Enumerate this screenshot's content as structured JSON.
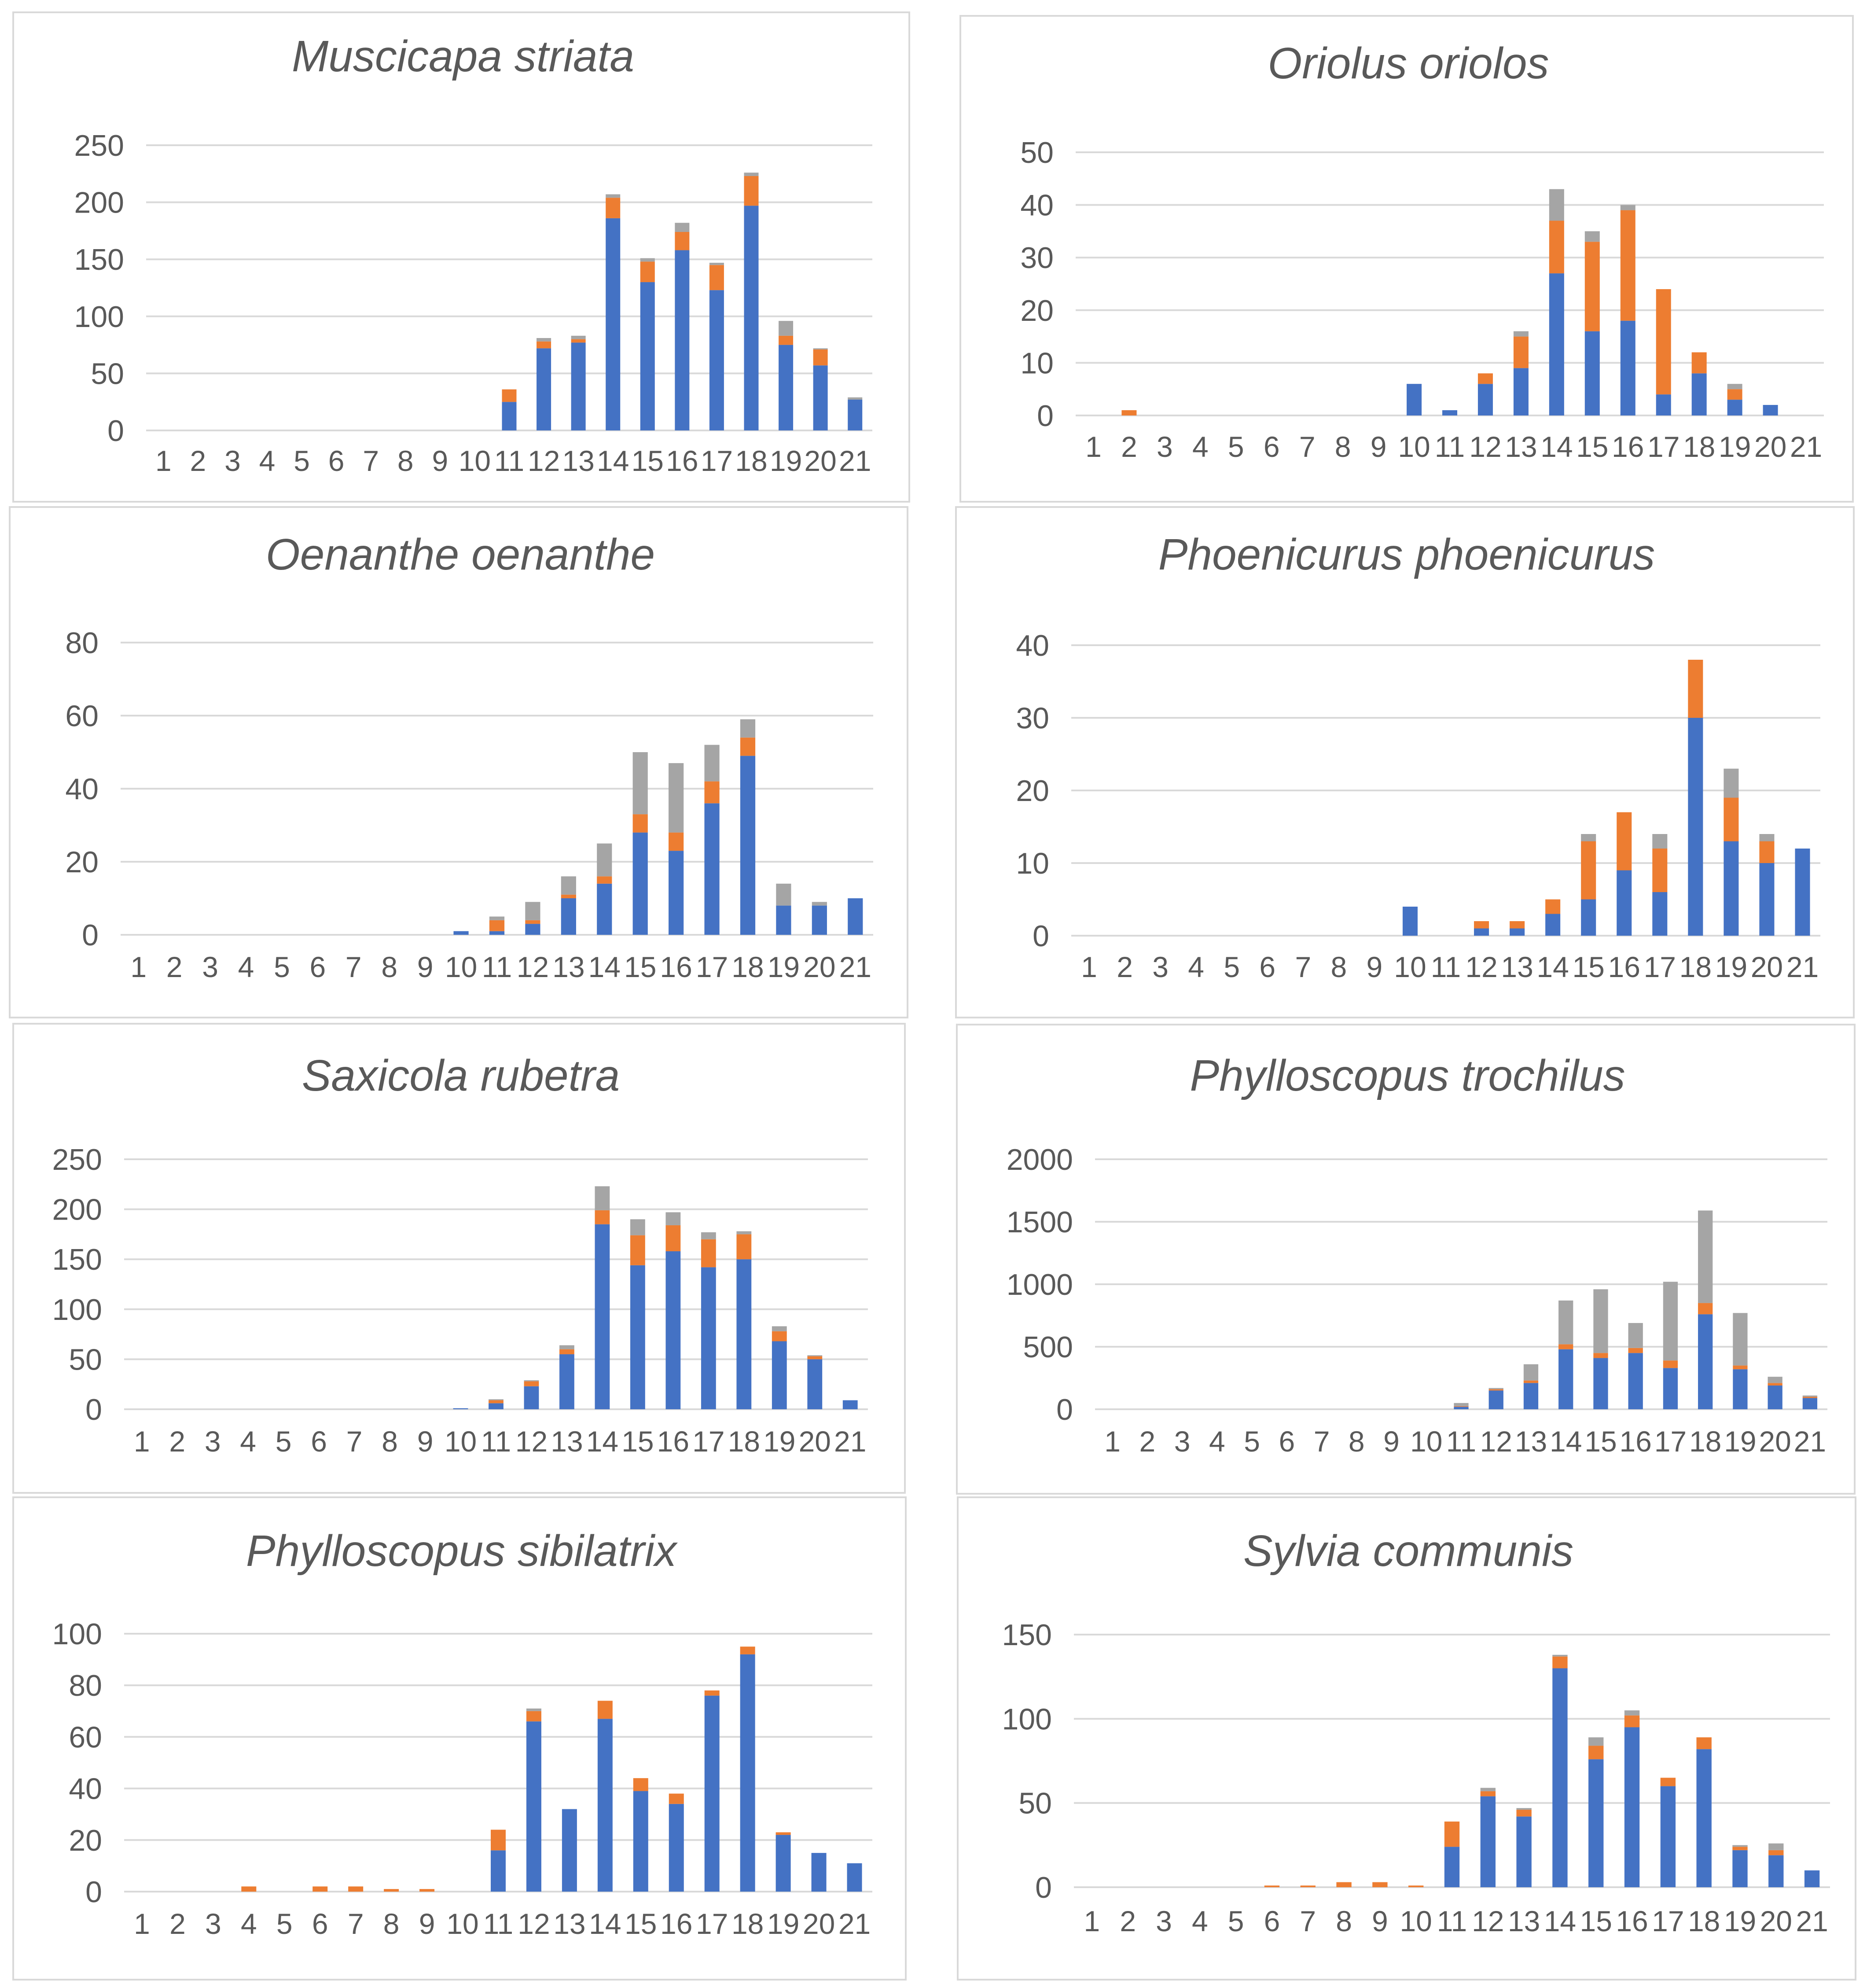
{
  "colors": {
    "series1": "#4472c4",
    "series2": "#ed7d31",
    "series3": "#a5a5a5",
    "grid": "#d9d9d9",
    "text": "#595959"
  },
  "chart_data": [
    {
      "type": "bar",
      "stacked": true,
      "title": "Muscicapa striata",
      "categories": [
        "1",
        "2",
        "3",
        "4",
        "5",
        "6",
        "7",
        "8",
        "9",
        "10",
        "11",
        "12",
        "13",
        "14",
        "15",
        "16",
        "17",
        "18",
        "19",
        "20",
        "21"
      ],
      "ylim": [
        0,
        250
      ],
      "yticks": [
        "0",
        "50",
        "100",
        "150",
        "200",
        "250"
      ],
      "series": [
        {
          "name": "series1",
          "values": [
            0,
            0,
            0,
            0,
            0,
            0,
            0,
            0,
            0,
            0,
            25,
            72,
            77,
            186,
            130,
            158,
            123,
            197,
            75,
            57,
            27
          ]
        },
        {
          "name": "series2",
          "values": [
            0,
            0,
            0,
            0,
            0,
            0,
            0,
            0,
            0,
            0,
            11,
            6,
            3,
            18,
            18,
            16,
            22,
            26,
            8,
            14,
            0
          ]
        },
        {
          "name": "series3",
          "values": [
            0,
            0,
            0,
            0,
            0,
            0,
            0,
            0,
            0,
            0,
            0,
            3,
            3,
            3,
            3,
            8,
            2,
            3,
            13,
            1,
            2
          ]
        }
      ]
    },
    {
      "type": "bar",
      "stacked": true,
      "title": "Oriolus oriolos",
      "categories": [
        "1",
        "2",
        "3",
        "4",
        "5",
        "6",
        "7",
        "8",
        "9",
        "10",
        "11",
        "12",
        "13",
        "14",
        "15",
        "16",
        "17",
        "18",
        "19",
        "20",
        "21"
      ],
      "ylim": [
        0,
        50
      ],
      "yticks": [
        "0",
        "10",
        "20",
        "30",
        "40",
        "50"
      ],
      "series": [
        {
          "name": "series1",
          "values": [
            0,
            0,
            0,
            0,
            0,
            0,
            0,
            0,
            0,
            6,
            1,
            6,
            9,
            27,
            16,
            18,
            4,
            8,
            3,
            2,
            0
          ]
        },
        {
          "name": "series2",
          "values": [
            0,
            1,
            0,
            0,
            0,
            0,
            0,
            0,
            0,
            0,
            0,
            2,
            6,
            10,
            17,
            21,
            20,
            4,
            2,
            0,
            0
          ]
        },
        {
          "name": "series3",
          "values": [
            0,
            0,
            0,
            0,
            0,
            0,
            0,
            0,
            0,
            0,
            0,
            0,
            1,
            6,
            2,
            1,
            0,
            0,
            1,
            0,
            0
          ]
        }
      ]
    },
    {
      "type": "bar",
      "stacked": true,
      "title": "Oenanthe oenanthe",
      "categories": [
        "1",
        "2",
        "3",
        "4",
        "5",
        "6",
        "7",
        "8",
        "9",
        "10",
        "11",
        "12",
        "13",
        "14",
        "15",
        "16",
        "17",
        "18",
        "19",
        "20",
        "21"
      ],
      "ylim": [
        0,
        80
      ],
      "yticks": [
        "0",
        "20",
        "40",
        "60",
        "80"
      ],
      "series": [
        {
          "name": "series1",
          "values": [
            0,
            0,
            0,
            0,
            0,
            0,
            0,
            0,
            0,
            1,
            1,
            3,
            10,
            14,
            28,
            23,
            36,
            49,
            8,
            8,
            10
          ]
        },
        {
          "name": "series2",
          "values": [
            0,
            0,
            0,
            0,
            0,
            0,
            0,
            0,
            0,
            0,
            3,
            1,
            1,
            2,
            5,
            5,
            6,
            5,
            0,
            0,
            0
          ]
        },
        {
          "name": "series3",
          "values": [
            0,
            0,
            0,
            0,
            0,
            0,
            0,
            0,
            0,
            0,
            1,
            5,
            5,
            9,
            17,
            19,
            10,
            5,
            6,
            1,
            0
          ]
        }
      ]
    },
    {
      "type": "bar",
      "stacked": true,
      "title": "Phoenicurus phoenicurus",
      "categories": [
        "1",
        "2",
        "3",
        "4",
        "5",
        "6",
        "7",
        "8",
        "9",
        "10",
        "11",
        "12",
        "13",
        "14",
        "15",
        "16",
        "17",
        "18",
        "19",
        "20",
        "21"
      ],
      "ylim": [
        0,
        40
      ],
      "yticks": [
        "0",
        "10",
        "20",
        "30",
        "40"
      ],
      "series": [
        {
          "name": "series1",
          "values": [
            0,
            0,
            0,
            0,
            0,
            0,
            0,
            0,
            0,
            4,
            0,
            1,
            1,
            3,
            5,
            9,
            6,
            30,
            13,
            10,
            12
          ]
        },
        {
          "name": "series2",
          "values": [
            0,
            0,
            0,
            0,
            0,
            0,
            0,
            0,
            0,
            0,
            0,
            1,
            1,
            2,
            8,
            8,
            6,
            8,
            6,
            3,
            0
          ]
        },
        {
          "name": "series3",
          "values": [
            0,
            0,
            0,
            0,
            0,
            0,
            0,
            0,
            0,
            0,
            0,
            0,
            0,
            0,
            1,
            0,
            2,
            0,
            4,
            1,
            0
          ]
        }
      ]
    },
    {
      "type": "bar",
      "stacked": true,
      "title": "Saxicola rubetra",
      "categories": [
        "1",
        "2",
        "3",
        "4",
        "5",
        "6",
        "7",
        "8",
        "9",
        "10",
        "11",
        "12",
        "13",
        "14",
        "15",
        "16",
        "17",
        "18",
        "19",
        "20",
        "21"
      ],
      "ylim": [
        0,
        250
      ],
      "yticks": [
        "0",
        "50",
        "100",
        "150",
        "200",
        "250"
      ],
      "series": [
        {
          "name": "series1",
          "values": [
            0,
            0,
            0,
            0,
            0,
            0,
            0,
            0,
            0,
            1,
            6,
            23,
            55,
            185,
            144,
            158,
            142,
            150,
            68,
            50,
            9
          ]
        },
        {
          "name": "series2",
          "values": [
            0,
            0,
            0,
            0,
            0,
            0,
            0,
            0,
            0,
            0,
            3,
            5,
            5,
            14,
            30,
            26,
            28,
            25,
            10,
            3,
            0
          ]
        },
        {
          "name": "series3",
          "values": [
            0,
            0,
            0,
            0,
            0,
            0,
            0,
            0,
            0,
            0,
            1,
            1,
            4,
            24,
            16,
            13,
            7,
            3,
            5,
            1,
            0
          ]
        }
      ]
    },
    {
      "type": "bar",
      "stacked": true,
      "title": "Phylloscopus trochilus",
      "categories": [
        "1",
        "2",
        "3",
        "4",
        "5",
        "6",
        "7",
        "8",
        "9",
        "10",
        "11",
        "12",
        "13",
        "14",
        "15",
        "16",
        "17",
        "18",
        "19",
        "20",
        "21"
      ],
      "ylim": [
        0,
        2000
      ],
      "yticks": [
        "0",
        "500",
        "1000",
        "1500",
        "2000"
      ],
      "series": [
        {
          "name": "series1",
          "values": [
            0,
            0,
            0,
            0,
            0,
            0,
            0,
            0,
            0,
            0,
            20,
            150,
            210,
            480,
            410,
            450,
            330,
            760,
            320,
            190,
            90
          ]
        },
        {
          "name": "series2",
          "values": [
            0,
            0,
            0,
            0,
            0,
            0,
            0,
            0,
            0,
            0,
            5,
            10,
            20,
            40,
            40,
            40,
            60,
            90,
            30,
            20,
            10
          ]
        },
        {
          "name": "series3",
          "values": [
            0,
            0,
            0,
            0,
            0,
            0,
            0,
            0,
            0,
            0,
            25,
            10,
            130,
            350,
            510,
            200,
            630,
            740,
            420,
            50,
            10
          ]
        }
      ]
    },
    {
      "type": "bar",
      "stacked": true,
      "title": "Phylloscopus sibilatrix",
      "categories": [
        "1",
        "2",
        "3",
        "4",
        "5",
        "6",
        "7",
        "8",
        "9",
        "10",
        "11",
        "12",
        "13",
        "14",
        "15",
        "16",
        "17",
        "18",
        "19",
        "20",
        "21"
      ],
      "ylim": [
        0,
        100
      ],
      "yticks": [
        "0",
        "20",
        "40",
        "60",
        "80",
        "100"
      ],
      "series": [
        {
          "name": "series1",
          "values": [
            0,
            0,
            0,
            0,
            0,
            0,
            0,
            0,
            0,
            0,
            16,
            66,
            32,
            67,
            39,
            34,
            76,
            92,
            22,
            15,
            11
          ]
        },
        {
          "name": "series2",
          "values": [
            0,
            0,
            0,
            2,
            0,
            2,
            2,
            1,
            1,
            0,
            8,
            4,
            0,
            7,
            5,
            4,
            2,
            3,
            1,
            0,
            0
          ]
        },
        {
          "name": "series3",
          "values": [
            0,
            0,
            0,
            0,
            0,
            0,
            0,
            0,
            0,
            0,
            0,
            1,
            0,
            0,
            0,
            0,
            0,
            0,
            0,
            0,
            0
          ]
        }
      ]
    },
    {
      "type": "bar",
      "stacked": true,
      "title": "Sylvia communis",
      "categories": [
        "1",
        "2",
        "3",
        "4",
        "5",
        "6",
        "7",
        "8",
        "9",
        "10",
        "11",
        "12",
        "13",
        "14",
        "15",
        "16",
        "17",
        "18",
        "19",
        "20",
        "21"
      ],
      "ylim": [
        0,
        150
      ],
      "yticks": [
        "0",
        "50",
        "100",
        "150"
      ],
      "series": [
        {
          "name": "series1",
          "values": [
            0,
            0,
            0,
            0,
            0,
            0,
            0,
            0,
            0,
            0,
            24,
            54,
            42,
            130,
            76,
            95,
            60,
            82,
            22,
            19,
            10
          ]
        },
        {
          "name": "series2",
          "values": [
            0,
            0,
            0,
            0,
            0,
            1,
            1,
            3,
            3,
            1,
            15,
            3,
            4,
            7,
            8,
            7,
            5,
            7,
            2,
            3,
            0
          ]
        },
        {
          "name": "series3",
          "values": [
            0,
            0,
            0,
            0,
            0,
            0,
            0,
            0,
            0,
            0,
            0,
            2,
            1,
            1,
            5,
            3,
            0,
            0,
            1,
            4,
            0
          ]
        }
      ]
    }
  ]
}
